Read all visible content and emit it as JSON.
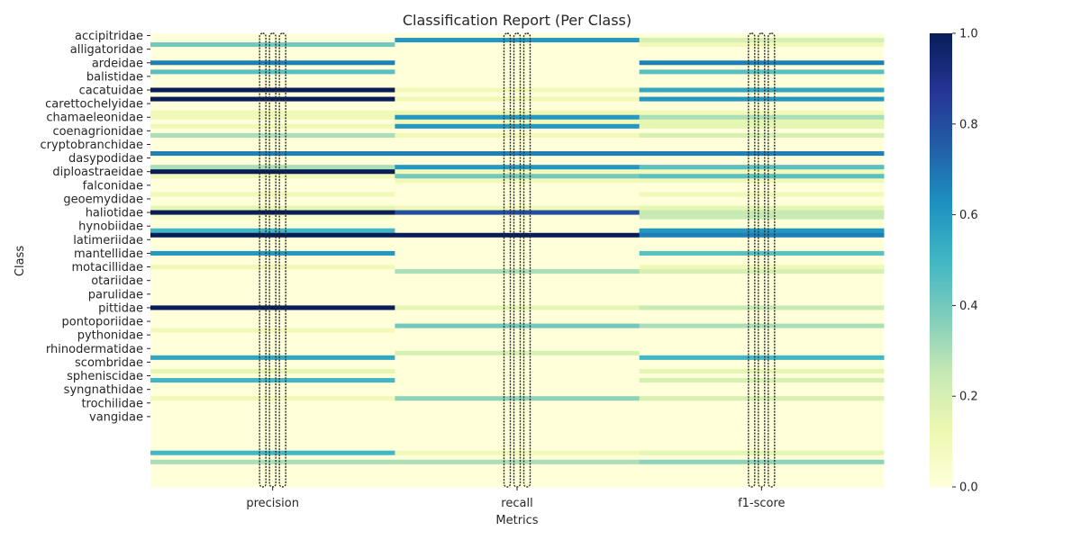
{
  "chart_data": {
    "type": "heatmap",
    "title": "Classification Report (Per Class)",
    "xlabel": "Metrics",
    "ylabel": "Class",
    "columns": [
      "precision",
      "recall",
      "f1-score"
    ],
    "y_tick_labels": [
      "accipitridae",
      "alligatoridae",
      "ardeidae",
      "balistidae",
      "cacatuidae",
      "carettochelyidae",
      "chamaeleonidae",
      "coenagrionidae",
      "cryptobranchidae",
      "dasypodidae",
      "diploastraeidae",
      "falconidae",
      "geoemydidae",
      "haliotidae",
      "hynobiidae",
      "latimeriidae",
      "mantellidae",
      "motacillidae",
      "otariidae",
      "parulidae",
      "pittidae",
      "pontoporiidae",
      "pythonidae",
      "rhinodermatidae",
      "scombridae",
      "spheniscidae",
      "syngnathidae",
      "trochilidae",
      "vangidae"
    ],
    "n_rows": 100,
    "label_every": 3,
    "colorbar": {
      "min": 0.0,
      "max": 1.0,
      "ticks": [
        "0.0",
        "0.2",
        "0.4",
        "0.6",
        "0.8",
        "1.0"
      ]
    },
    "colormap": "YlGnBu",
    "cell_annotations": "numeric values printed in every cell (illegible at this size)",
    "nonzero_cells": [
      {
        "row": 1,
        "precision": 0.0,
        "recall": 0.6,
        "f1": 0.2
      },
      {
        "row": 2,
        "precision": 0.4,
        "recall": 0.0,
        "f1": 0.1
      },
      {
        "row": 6,
        "precision": 0.67,
        "recall": 0.0,
        "f1": 0.67
      },
      {
        "row": 8,
        "precision": 0.45,
        "recall": 0.0,
        "f1": 0.45
      },
      {
        "row": 12,
        "precision": 1.0,
        "recall": 0.1,
        "f1": 0.55
      },
      {
        "row": 14,
        "precision": 1.0,
        "recall": 0.1,
        "f1": 0.6
      },
      {
        "row": 17,
        "precision": 0.1,
        "recall": 0.12,
        "f1": 0.1
      },
      {
        "row": 18,
        "precision": 0.1,
        "recall": 0.6,
        "f1": 0.3
      },
      {
        "row": 19,
        "precision": 0.0,
        "recall": 0.1,
        "f1": 0.15
      },
      {
        "row": 20,
        "precision": 0.1,
        "recall": 0.6,
        "f1": 0.15
      },
      {
        "row": 22,
        "precision": 0.3,
        "recall": 0.1,
        "f1": 0.2
      },
      {
        "row": 26,
        "precision": 0.67,
        "recall": 0.67,
        "f1": 0.67
      },
      {
        "row": 29,
        "precision": 0.3,
        "recall": 0.6,
        "f1": 0.45
      },
      {
        "row": 30,
        "precision": 1.0,
        "recall": 0.1,
        "f1": 0.1
      },
      {
        "row": 31,
        "precision": 0.1,
        "recall": 0.4,
        "f1": 0.45
      },
      {
        "row": 32,
        "precision": 0.0,
        "recall": 0.1,
        "f1": 0.1
      },
      {
        "row": 35,
        "precision": 0.1,
        "recall": 0.0,
        "f1": 0.1
      },
      {
        "row": 38,
        "precision": 0.15,
        "recall": 0.1,
        "f1": 0.15
      },
      {
        "row": 39,
        "precision": 1.0,
        "recall": 0.8,
        "f1": 0.25
      },
      {
        "row": 40,
        "precision": 0.05,
        "recall": 0.0,
        "f1": 0.25
      },
      {
        "row": 43,
        "precision": 0.5,
        "recall": 0.0,
        "f1": 0.6
      },
      {
        "row": 44,
        "precision": 1.0,
        "recall": 1.0,
        "f1": 0.67
      },
      {
        "row": 48,
        "precision": 0.6,
        "recall": 0.0,
        "f1": 0.45
      },
      {
        "row": 51,
        "precision": 0.1,
        "recall": 0.0,
        "f1": 0.1
      },
      {
        "row": 52,
        "precision": 0.0,
        "recall": 0.3,
        "f1": 0.2
      },
      {
        "row": 60,
        "precision": 1.0,
        "recall": 0.15,
        "f1": 0.25
      },
      {
        "row": 64,
        "precision": 0.0,
        "recall": 0.4,
        "f1": 0.3
      },
      {
        "row": 65,
        "precision": 0.1,
        "recall": 0.0,
        "f1": 0.0
      },
      {
        "row": 70,
        "precision": 0.0,
        "recall": 0.2,
        "f1": 0.0
      },
      {
        "row": 71,
        "precision": 0.55,
        "recall": 0.0,
        "f1": 0.5
      },
      {
        "row": 74,
        "precision": 0.15,
        "recall": 0.0,
        "f1": 0.15
      },
      {
        "row": 76,
        "precision": 0.5,
        "recall": 0.0,
        "f1": 0.2
      },
      {
        "row": 80,
        "precision": 0.1,
        "recall": 0.35,
        "f1": 0.2
      },
      {
        "row": 92,
        "precision": 0.5,
        "recall": 0.1,
        "f1": 0.15
      },
      {
        "row": 94,
        "precision": 0.3,
        "recall": 0.3,
        "f1": 0.35
      }
    ]
  }
}
